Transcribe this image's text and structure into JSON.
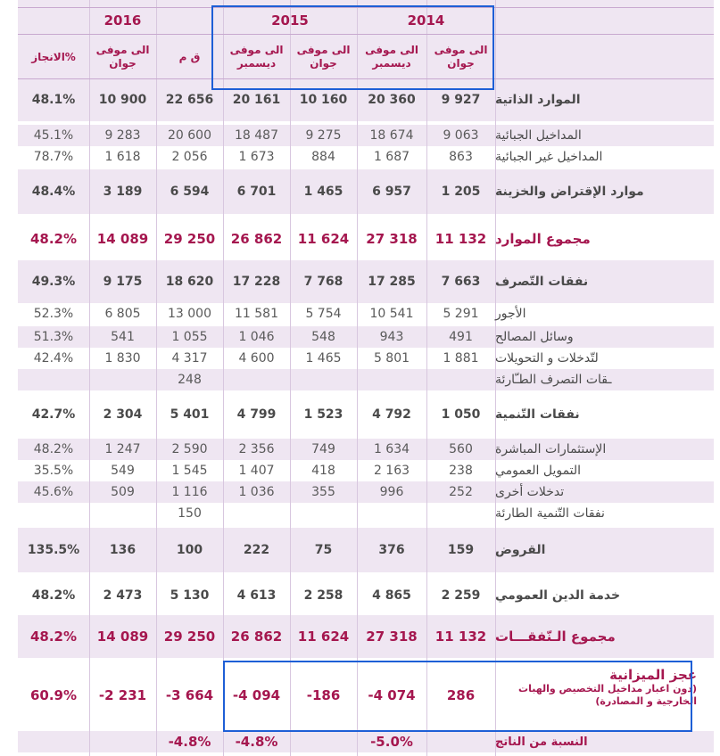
{
  "years": {
    "y2016": "2016",
    "y2015": "2015",
    "y2014": "2014"
  },
  "headers": {
    "achievement": "%الانجاز",
    "lf": "ق م",
    "to_december_2015": "الى موفى\nديسمبر",
    "to_june_2015": "الى موفى\nجوان",
    "to_december_2014": "الى موفى\nديسمبر",
    "to_june_2014": "الى موفى\nجوان",
    "to_june_2016": "الى موفى\nجوان"
  },
  "rows": [
    {
      "label": "الموارد الذاتية",
      "style": "bold",
      "values": [
        "48.1%",
        "10 900",
        "22 656",
        "20 161",
        "10 160",
        "20 360",
        "9 927"
      ]
    },
    {
      "label": "المداخيل الجبائية",
      "style": "sub",
      "values": [
        "45.1%",
        "9 283",
        "20 600",
        "18 487",
        "9 275",
        "18 674",
        "9 063"
      ]
    },
    {
      "label": "المداخيل غير الجبائية",
      "style": "sub",
      "values": [
        "78.7%",
        "1 618",
        "2 056",
        "1 673",
        "884",
        "1 687",
        "863"
      ]
    },
    {
      "label": "موارد الإقتراض والخزينة",
      "style": "bold",
      "values": [
        "48.4%",
        "3 189",
        "6 594",
        "6 701",
        "1 465",
        "6 957",
        "1 205"
      ]
    },
    {
      "label": "مجموع الموارد",
      "style": "total",
      "values": [
        "48.2%",
        "14 089",
        "29 250",
        "26 862",
        "11 624",
        "27 318",
        "11 132"
      ]
    },
    {
      "label": "نفقات التّصرف",
      "style": "bold",
      "values": [
        "49.3%",
        "9 175",
        "18 620",
        "17 228",
        "7 768",
        "17 285",
        "7 663"
      ]
    },
    {
      "label": "الأجور",
      "style": "sub",
      "values": [
        "52.3%",
        "6 805",
        "13 000",
        "11 581",
        "5 754",
        "10 541",
        "5 291"
      ]
    },
    {
      "label": "وسائل المصالح",
      "style": "sub",
      "values": [
        "51.3%",
        "541",
        "1 055",
        "1 046",
        "548",
        "943",
        "491"
      ]
    },
    {
      "label": "لتّدخلات و التحويلات",
      "style": "sub",
      "values": [
        "42.4%",
        "1 830",
        "4 317",
        "4 600",
        "1 465",
        "5 801",
        "1 881"
      ]
    },
    {
      "label": "ـقات التصرف الطـّارئة",
      "style": "sub",
      "values": [
        "",
        "",
        "248",
        "",
        "",
        "",
        ""
      ]
    },
    {
      "label": "نفقات التّنمية",
      "style": "bold",
      "values": [
        "42.7%",
        "2 304",
        "5 401",
        "4 799",
        "1 523",
        "4 792",
        "1 050"
      ]
    },
    {
      "label": "الإستثمارات المباشرة",
      "style": "sub",
      "values": [
        "48.2%",
        "1 247",
        "2 590",
        "2 356",
        "749",
        "1 634",
        "560"
      ]
    },
    {
      "label": "التمويل العمومي",
      "style": "sub",
      "values": [
        "35.5%",
        "549",
        "1 545",
        "1 407",
        "418",
        "2 163",
        "238"
      ]
    },
    {
      "label": "تدخلات أخرى",
      "style": "sub",
      "values": [
        "45.6%",
        "509",
        "1 116",
        "1 036",
        "355",
        "996",
        "252"
      ]
    },
    {
      "label": "نفقات التّنمية الطارئة",
      "style": "sub",
      "values": [
        "",
        "",
        "150",
        "",
        "",
        "",
        ""
      ]
    },
    {
      "label": "القروض",
      "style": "bold",
      "values": [
        "135.5%",
        "136",
        "100",
        "222",
        "75",
        "376",
        "159"
      ]
    },
    {
      "label": "خدمة الدين العمومي",
      "style": "bold",
      "values": [
        "48.2%",
        "2 473",
        "5 130",
        "4 613",
        "2 258",
        "4 865",
        "2 259"
      ]
    },
    {
      "label": "مجموع الـنّفقـــات",
      "style": "total",
      "values": [
        "48.2%",
        "14 089",
        "29 250",
        "26 862",
        "11 624",
        "27 318",
        "11 132"
      ]
    }
  ],
  "deficit": {
    "title": "عجز الميزانية",
    "note": "(دون اعبار مداخيل التخصيص والهبات الخارجية و المصادرة)",
    "values": [
      "60.9%",
      "-2 231",
      "-3 664",
      "-4 094",
      "-186",
      "-4 074",
      "286"
    ]
  },
  "gdp_ratio": {
    "label": "النسبة من الناتج",
    "values": [
      "",
      "",
      "-4.8%",
      "-4.8%",
      "",
      "-5.0%",
      ""
    ]
  },
  "colors": {
    "accent": "#a5174f",
    "band": "#efe6f2",
    "highlight_box": "#1e5fd6"
  }
}
